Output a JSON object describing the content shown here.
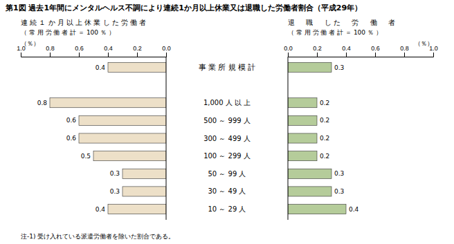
{
  "chart_data": {
    "type": "bar",
    "orientation": "horizontal",
    "title": "第1図  過去1年間にメンタルヘルス不調により連続1か月以上休業又は退職した労働者割合（平成29年）",
    "categories": [
      "事 業 所 規 模 計",
      "1,000 人 以 上",
      "500 ～ 999 人",
      "300 ～ 499 人",
      "100 ～ 299 人",
      "50 ～ 99 人",
      "30 ～ 49 人",
      "10 ～ 29 人"
    ],
    "series": [
      {
        "name": "連 続 １ か 月 以 上 休 業 し た 労 働 者",
        "subtitle": "（ 常 用 労 働 者 計 ＝ 100 ％ ）",
        "color": "#ede0c8",
        "values": [
          0.4,
          0.8,
          0.6,
          0.6,
          0.5,
          0.3,
          0.3,
          0.4
        ]
      },
      {
        "name": "退 　 職 　 し た 　 労 　 働 　 者",
        "subtitle": "（ 常 用 労 働 者 計 ＝ 100 ％ ）",
        "color": "#b5cc9a",
        "values": [
          0.3,
          0.2,
          0.2,
          0.2,
          0.2,
          0.3,
          0.3,
          0.4
        ]
      }
    ],
    "xlabel": "（％）",
    "xlim": [
      0,
      1
    ],
    "xticks": [
      {
        "value": 0,
        "label": "0.0"
      },
      0.2,
      0.4,
      0.6,
      0.8,
      {
        "value": 1,
        "label": "1.0"
      }
    ],
    "data_labels": true,
    "annotations": [
      "注-1) 受け入れている派遣労働者を除いた割合である。"
    ]
  }
}
